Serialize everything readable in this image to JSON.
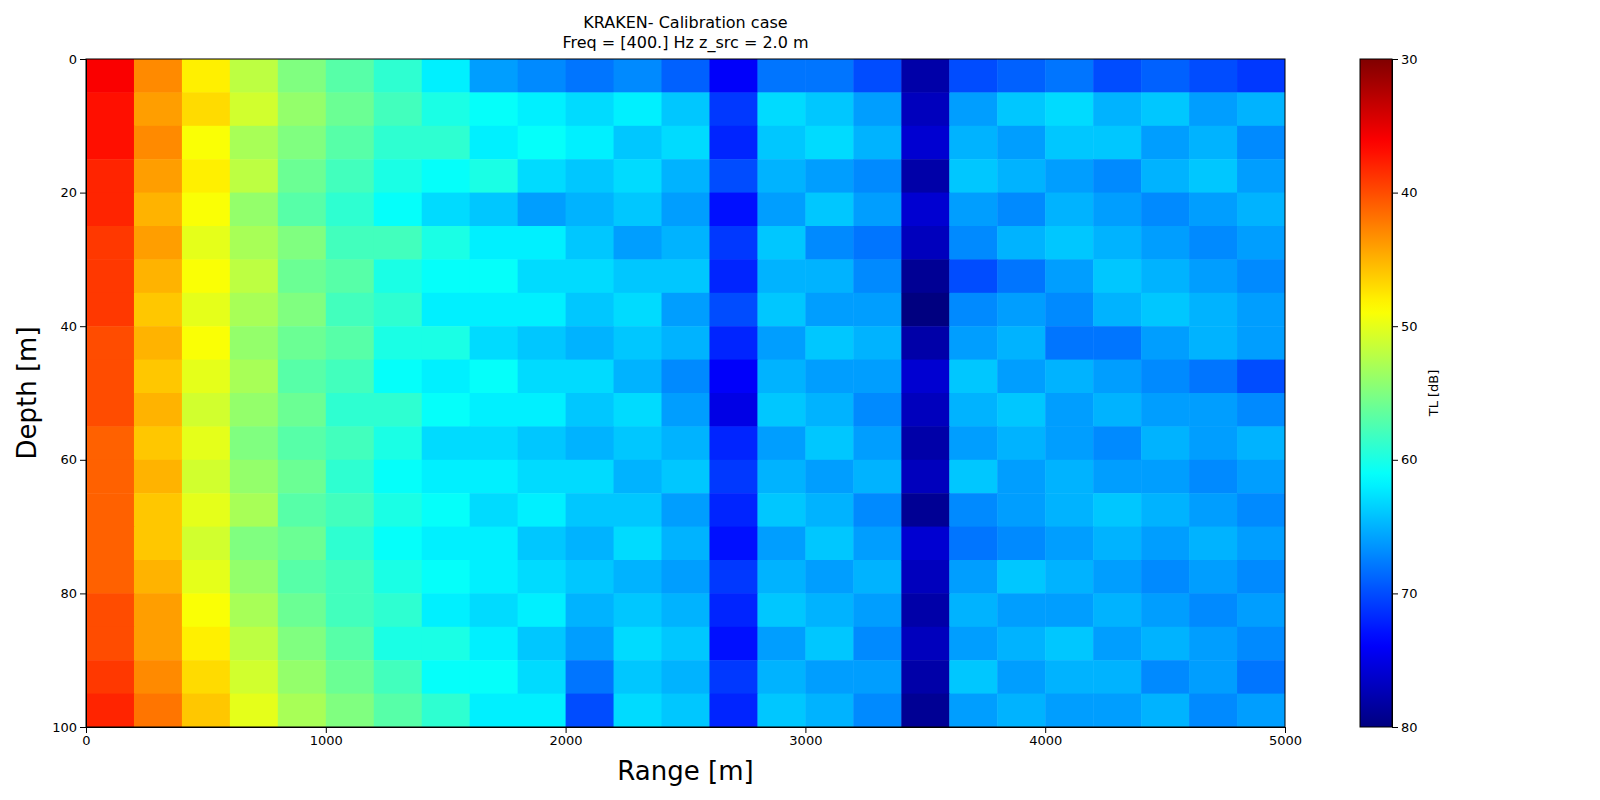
{
  "chart_data": {
    "type": "heatmap",
    "title": [
      "KRAKEN- Calibration case",
      "Freq = [400.] Hz    z_src = 2.0 m"
    ],
    "xlabel": "Range [m]",
    "ylabel": "Depth [m]",
    "xlim": [
      0,
      5000
    ],
    "xticks": [
      0,
      1000,
      2000,
      3000,
      4000,
      5000
    ],
    "ylim": [
      100,
      0
    ],
    "yticks": [
      0,
      20,
      40,
      60,
      80,
      100
    ],
    "x": [
      100,
      300,
      500,
      700,
      900,
      1100,
      1300,
      1500,
      1700,
      1900,
      2100,
      2300,
      2500,
      2700,
      2900,
      3100,
      3300,
      3500,
      3700,
      3900,
      4100,
      4300,
      4500,
      4700,
      4900
    ],
    "y": [
      2.5,
      7.5,
      12.5,
      17.5,
      22.5,
      27.5,
      32.5,
      37.5,
      42.5,
      47.5,
      52.5,
      57.5,
      62.5,
      67.5,
      72.5,
      77.5,
      82.5,
      87.5,
      92.5,
      97.5
    ],
    "z": [
      [
        36,
        43,
        48,
        52,
        55,
        57,
        59,
        62,
        66,
        67,
        68,
        67,
        69,
        74,
        68,
        68,
        70,
        78,
        70,
        69,
        68,
        70,
        69,
        70,
        71
      ],
      [
        37,
        44,
        47,
        51,
        54,
        56,
        58,
        60,
        61,
        62,
        63,
        62,
        64,
        71,
        63,
        64,
        66,
        77,
        66,
        64,
        63,
        65,
        64,
        66,
        65
      ],
      [
        37,
        43,
        49,
        53,
        55,
        57,
        59,
        59,
        62,
        61,
        62,
        64,
        63,
        72,
        64,
        63,
        65,
        76,
        65,
        66,
        64,
        64,
        66,
        65,
        67
      ],
      [
        38,
        44,
        48,
        52,
        56,
        58,
        60,
        61,
        60,
        63,
        64,
        63,
        65,
        70,
        65,
        66,
        67,
        78,
        64,
        65,
        66,
        67,
        65,
        64,
        66
      ],
      [
        38,
        45,
        49,
        54,
        57,
        59,
        61,
        63,
        64,
        66,
        65,
        64,
        66,
        73,
        66,
        64,
        66,
        76,
        66,
        67,
        65,
        66,
        67,
        66,
        65
      ],
      [
        39,
        44,
        50,
        53,
        55,
        58,
        58,
        60,
        62,
        62,
        64,
        66,
        65,
        71,
        64,
        67,
        68,
        77,
        67,
        65,
        64,
        65,
        66,
        67,
        66
      ],
      [
        39,
        45,
        49,
        52,
        56,
        57,
        60,
        61,
        61,
        63,
        63,
        64,
        64,
        72,
        65,
        65,
        67,
        79,
        70,
        68,
        66,
        64,
        65,
        66,
        67
      ],
      [
        39,
        46,
        50,
        53,
        55,
        58,
        59,
        62,
        62,
        62,
        64,
        63,
        66,
        70,
        64,
        66,
        66,
        80,
        67,
        66,
        67,
        65,
        64,
        65,
        66
      ],
      [
        40,
        45,
        49,
        54,
        56,
        57,
        60,
        60,
        63,
        64,
        65,
        64,
        65,
        72,
        66,
        64,
        65,
        78,
        66,
        65,
        68,
        68,
        66,
        65,
        66
      ],
      [
        40,
        46,
        50,
        53,
        57,
        58,
        61,
        62,
        61,
        63,
        63,
        65,
        67,
        74,
        65,
        66,
        66,
        76,
        64,
        66,
        65,
        66,
        67,
        68,
        70
      ],
      [
        40,
        45,
        51,
        54,
        56,
        59,
        59,
        61,
        62,
        62,
        64,
        63,
        66,
        75,
        64,
        65,
        67,
        77,
        65,
        64,
        66,
        65,
        66,
        66,
        67
      ],
      [
        41,
        46,
        50,
        55,
        57,
        58,
        60,
        63,
        63,
        64,
        65,
        64,
        65,
        72,
        66,
        64,
        66,
        78,
        66,
        65,
        66,
        67,
        65,
        66,
        65
      ],
      [
        41,
        45,
        51,
        54,
        56,
        59,
        61,
        62,
        62,
        63,
        63,
        65,
        64,
        71,
        65,
        66,
        65,
        77,
        64,
        66,
        65,
        66,
        66,
        67,
        66
      ],
      [
        41,
        46,
        50,
        53,
        57,
        58,
        60,
        61,
        63,
        62,
        64,
        64,
        66,
        72,
        64,
        65,
        67,
        79,
        67,
        66,
        65,
        64,
        65,
        66,
        67
      ],
      [
        41,
        46,
        51,
        55,
        56,
        59,
        61,
        62,
        62,
        64,
        65,
        63,
        65,
        73,
        66,
        64,
        66,
        76,
        68,
        67,
        66,
        65,
        66,
        65,
        66
      ],
      [
        41,
        45,
        50,
        54,
        57,
        58,
        60,
        61,
        62,
        63,
        64,
        65,
        66,
        71,
        65,
        66,
        65,
        77,
        66,
        64,
        65,
        66,
        67,
        66,
        67
      ],
      [
        40,
        44,
        49,
        53,
        56,
        58,
        59,
        62,
        63,
        62,
        65,
        64,
        65,
        72,
        64,
        65,
        66,
        78,
        65,
        66,
        66,
        65,
        66,
        67,
        66
      ],
      [
        40,
        44,
        48,
        52,
        55,
        57,
        60,
        60,
        62,
        64,
        66,
        63,
        64,
        73,
        66,
        64,
        67,
        77,
        66,
        65,
        64,
        66,
        65,
        66,
        67
      ],
      [
        39,
        43,
        47,
        51,
        54,
        56,
        58,
        61,
        61,
        63,
        68,
        64,
        65,
        71,
        65,
        66,
        66,
        78,
        64,
        66,
        65,
        65,
        67,
        66,
        68
      ],
      [
        38,
        42,
        46,
        50,
        53,
        55,
        57,
        59,
        62,
        62,
        70,
        63,
        64,
        72,
        64,
        65,
        67,
        79,
        66,
        65,
        66,
        66,
        65,
        67,
        66
      ]
    ],
    "zlim": [
      30,
      80
    ],
    "zticks": [
      30,
      40,
      50,
      60,
      70,
      80
    ],
    "zlabel": "TL [dB]"
  }
}
